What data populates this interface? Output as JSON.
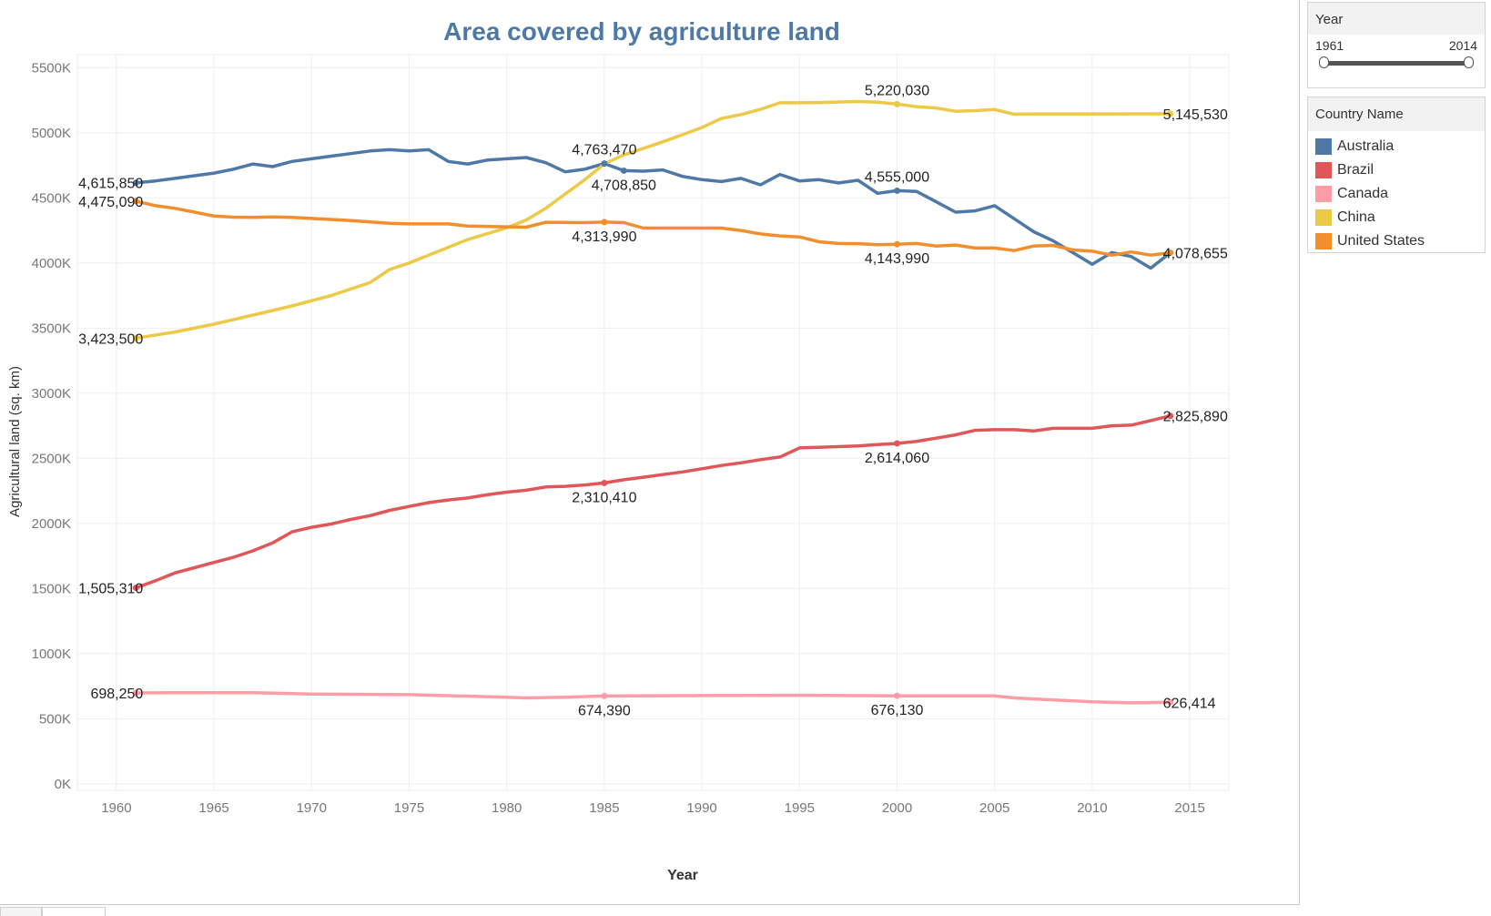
{
  "chart_data": {
    "type": "line",
    "title": "Area covered by agriculture land",
    "xlabel": "Year",
    "ylabel": "Agricultural land (sq. km)",
    "xlim": [
      1958,
      2017
    ],
    "ylim": [
      -50000,
      5600000
    ],
    "x_ticks": [
      1960,
      1965,
      1970,
      1975,
      1980,
      1985,
      1990,
      1995,
      2000,
      2005,
      2010,
      2015
    ],
    "y_ticks": [
      {
        "value": 0,
        "label": "0K"
      },
      {
        "value": 500000,
        "label": "500K"
      },
      {
        "value": 1000000,
        "label": "1000K"
      },
      {
        "value": 1500000,
        "label": "1500K"
      },
      {
        "value": 2000000,
        "label": "2000K"
      },
      {
        "value": 2500000,
        "label": "2500K"
      },
      {
        "value": 3000000,
        "label": "3000K"
      },
      {
        "value": 3500000,
        "label": "3500K"
      },
      {
        "value": 4000000,
        "label": "4000K"
      },
      {
        "value": 4500000,
        "label": "4500K"
      },
      {
        "value": 5000000,
        "label": "5000K"
      },
      {
        "value": 5500000,
        "label": "5500K"
      }
    ],
    "grid": true,
    "legend_position": "right",
    "series": [
      {
        "name": "Australia",
        "color": "#4e79a7",
        "points": [
          [
            1961,
            4615850
          ],
          [
            1962,
            4630000
          ],
          [
            1963,
            4650000
          ],
          [
            1964,
            4670000
          ],
          [
            1965,
            4690000
          ],
          [
            1966,
            4720000
          ],
          [
            1967,
            4760000
          ],
          [
            1968,
            4740000
          ],
          [
            1969,
            4780000
          ],
          [
            1970,
            4800000
          ],
          [
            1971,
            4820000
          ],
          [
            1972,
            4840000
          ],
          [
            1973,
            4860000
          ],
          [
            1974,
            4870000
          ],
          [
            1975,
            4860000
          ],
          [
            1976,
            4870000
          ],
          [
            1977,
            4780000
          ],
          [
            1978,
            4760000
          ],
          [
            1979,
            4790000
          ],
          [
            1980,
            4800000
          ],
          [
            1981,
            4810000
          ],
          [
            1982,
            4770000
          ],
          [
            1983,
            4700000
          ],
          [
            1984,
            4720000
          ],
          [
            1985,
            4763470
          ],
          [
            1986,
            4708850
          ],
          [
            1987,
            4705000
          ],
          [
            1988,
            4715000
          ],
          [
            1989,
            4665000
          ],
          [
            1990,
            4640000
          ],
          [
            1991,
            4625000
          ],
          [
            1992,
            4650000
          ],
          [
            1993,
            4600000
          ],
          [
            1994,
            4680000
          ],
          [
            1995,
            4630000
          ],
          [
            1996,
            4640000
          ],
          [
            1997,
            4615000
          ],
          [
            1998,
            4635000
          ],
          [
            1999,
            4535000
          ],
          [
            2000,
            4555000
          ],
          [
            2001,
            4550000
          ],
          [
            2002,
            4470000
          ],
          [
            2003,
            4390000
          ],
          [
            2004,
            4400000
          ],
          [
            2005,
            4440000
          ],
          [
            2006,
            4340000
          ],
          [
            2007,
            4240000
          ],
          [
            2008,
            4170000
          ],
          [
            2009,
            4080000
          ],
          [
            2010,
            3990000
          ],
          [
            2011,
            4080000
          ],
          [
            2012,
            4050000
          ],
          [
            2013,
            3960000
          ],
          [
            2014,
            4078655
          ]
        ]
      },
      {
        "name": "Brazil",
        "color": "#e15759",
        "points": [
          [
            1961,
            1505310
          ],
          [
            1962,
            1560000
          ],
          [
            1963,
            1620000
          ],
          [
            1964,
            1660000
          ],
          [
            1965,
            1700000
          ],
          [
            1966,
            1740000
          ],
          [
            1967,
            1790000
          ],
          [
            1968,
            1850000
          ],
          [
            1969,
            1935000
          ],
          [
            1970,
            1970000
          ],
          [
            1971,
            1995000
          ],
          [
            1972,
            2030000
          ],
          [
            1973,
            2060000
          ],
          [
            1974,
            2100000
          ],
          [
            1975,
            2130000
          ],
          [
            1976,
            2160000
          ],
          [
            1977,
            2180000
          ],
          [
            1978,
            2195000
          ],
          [
            1979,
            2220000
          ],
          [
            1980,
            2240000
          ],
          [
            1981,
            2255000
          ],
          [
            1982,
            2280000
          ],
          [
            1983,
            2285000
          ],
          [
            1984,
            2295000
          ],
          [
            1985,
            2310410
          ],
          [
            1986,
            2335000
          ],
          [
            1987,
            2355000
          ],
          [
            1988,
            2375000
          ],
          [
            1989,
            2395000
          ],
          [
            1990,
            2420000
          ],
          [
            1991,
            2445000
          ],
          [
            1992,
            2465000
          ],
          [
            1993,
            2490000
          ],
          [
            1994,
            2510000
          ],
          [
            1995,
            2580000
          ],
          [
            1996,
            2585000
          ],
          [
            1997,
            2590000
          ],
          [
            1998,
            2595000
          ],
          [
            1999,
            2605000
          ],
          [
            2000,
            2614060
          ],
          [
            2001,
            2630000
          ],
          [
            2002,
            2655000
          ],
          [
            2003,
            2680000
          ],
          [
            2004,
            2715000
          ],
          [
            2005,
            2720000
          ],
          [
            2006,
            2720000
          ],
          [
            2007,
            2710000
          ],
          [
            2008,
            2730000
          ],
          [
            2009,
            2730000
          ],
          [
            2010,
            2730000
          ],
          [
            2011,
            2750000
          ],
          [
            2012,
            2755000
          ],
          [
            2013,
            2790000
          ],
          [
            2014,
            2825890
          ]
        ]
      },
      {
        "name": "Canada",
        "color": "#ff9da7",
        "points": [
          [
            1961,
            698250
          ],
          [
            1963,
            700000
          ],
          [
            1965,
            700000
          ],
          [
            1967,
            700000
          ],
          [
            1970,
            690000
          ],
          [
            1975,
            685000
          ],
          [
            1980,
            665000
          ],
          [
            1981,
            660000
          ],
          [
            1983,
            665000
          ],
          [
            1985,
            674390
          ],
          [
            1990,
            678000
          ],
          [
            1995,
            680000
          ],
          [
            2000,
            676130
          ],
          [
            2005,
            675000
          ],
          [
            2006,
            660000
          ],
          [
            2010,
            630000
          ],
          [
            2012,
            622000
          ],
          [
            2014,
            626414
          ]
        ]
      },
      {
        "name": "China",
        "color": "#edc948",
        "points": [
          [
            1961,
            3423500
          ],
          [
            1963,
            3470000
          ],
          [
            1965,
            3530000
          ],
          [
            1967,
            3600000
          ],
          [
            1969,
            3670000
          ],
          [
            1971,
            3750000
          ],
          [
            1973,
            3850000
          ],
          [
            1974,
            3950000
          ],
          [
            1975,
            4000000
          ],
          [
            1976,
            4060000
          ],
          [
            1978,
            4180000
          ],
          [
            1980,
            4270000
          ],
          [
            1981,
            4330000
          ],
          [
            1982,
            4420000
          ],
          [
            1983,
            4530000
          ],
          [
            1984,
            4640000
          ],
          [
            1985,
            4760000
          ],
          [
            1986,
            4830000
          ],
          [
            1988,
            4930000
          ],
          [
            1990,
            5040000
          ],
          [
            1991,
            5110000
          ],
          [
            1992,
            5140000
          ],
          [
            1993,
            5180000
          ],
          [
            1994,
            5230000
          ],
          [
            1995,
            5230000
          ],
          [
            1996,
            5232000
          ],
          [
            1998,
            5240000
          ],
          [
            1999,
            5235000
          ],
          [
            2000,
            5220030
          ],
          [
            2001,
            5200000
          ],
          [
            2002,
            5190000
          ],
          [
            2003,
            5165000
          ],
          [
            2004,
            5170000
          ],
          [
            2005,
            5178000
          ],
          [
            2006,
            5143000
          ],
          [
            2007,
            5145000
          ],
          [
            2010,
            5145000
          ],
          [
            2014,
            5145530
          ]
        ]
      },
      {
        "name": "United States",
        "color": "#f28e2b",
        "points": [
          [
            1961,
            4475090
          ],
          [
            1962,
            4440000
          ],
          [
            1963,
            4420000
          ],
          [
            1964,
            4390000
          ],
          [
            1965,
            4360000
          ],
          [
            1966,
            4352000
          ],
          [
            1967,
            4350000
          ],
          [
            1968,
            4353000
          ],
          [
            1969,
            4350000
          ],
          [
            1970,
            4342000
          ],
          [
            1972,
            4326000
          ],
          [
            1974,
            4305000
          ],
          [
            1975,
            4300000
          ],
          [
            1977,
            4300000
          ],
          [
            1978,
            4283000
          ],
          [
            1980,
            4278000
          ],
          [
            1981,
            4275000
          ],
          [
            1982,
            4313000
          ],
          [
            1984,
            4310000
          ],
          [
            1985,
            4313990
          ],
          [
            1986,
            4310000
          ],
          [
            1987,
            4268000
          ],
          [
            1991,
            4268000
          ],
          [
            1992,
            4250000
          ],
          [
            1993,
            4223000
          ],
          [
            1994,
            4208000
          ],
          [
            1995,
            4200000
          ],
          [
            1996,
            4163000
          ],
          [
            1997,
            4150000
          ],
          [
            1998,
            4148000
          ],
          [
            1999,
            4140000
          ],
          [
            2000,
            4143990
          ],
          [
            2001,
            4150000
          ],
          [
            2002,
            4130000
          ],
          [
            2003,
            4138000
          ],
          [
            2004,
            4115000
          ],
          [
            2005,
            4115000
          ],
          [
            2006,
            4095000
          ],
          [
            2007,
            4130000
          ],
          [
            2008,
            4135000
          ],
          [
            2009,
            4100000
          ],
          [
            2010,
            4090000
          ],
          [
            2011,
            4060000
          ],
          [
            2012,
            4085000
          ],
          [
            2013,
            4060000
          ],
          [
            2014,
            4078655
          ]
        ]
      }
    ],
    "data_labels": [
      {
        "series": "Australia",
        "x": 1961,
        "y": 4615850,
        "text": "4,615,850",
        "anchor": "left"
      },
      {
        "series": "United States",
        "x": 1961,
        "y": 4475090,
        "text": "4,475,090",
        "anchor": "left"
      },
      {
        "series": "China",
        "x": 1961,
        "y": 3423500,
        "text": "3,423,500",
        "anchor": "left"
      },
      {
        "series": "Brazil",
        "x": 1961,
        "y": 1505310,
        "text": "1,505,310",
        "anchor": "left"
      },
      {
        "series": "Canada",
        "x": 1961,
        "y": 698250,
        "text": "698,250",
        "anchor": "left"
      },
      {
        "series": "Australia",
        "x": 1985,
        "y": 4763470,
        "text": "4,763,470",
        "anchor": "above"
      },
      {
        "series": "Australia",
        "x": 1986,
        "y": 4708850,
        "text": "4,708,850",
        "anchor": "below"
      },
      {
        "series": "United States",
        "x": 1985,
        "y": 4313990,
        "text": "4,313,990",
        "anchor": "below"
      },
      {
        "series": "Brazil",
        "x": 1985,
        "y": 2310410,
        "text": "2,310,410",
        "anchor": "below"
      },
      {
        "series": "Canada",
        "x": 1985,
        "y": 674390,
        "text": "674,390",
        "anchor": "below"
      },
      {
        "series": "China",
        "x": 2000,
        "y": 5220030,
        "text": "5,220,030",
        "anchor": "above"
      },
      {
        "series": "Australia",
        "x": 2000,
        "y": 4555000,
        "text": "4,555,000",
        "anchor": "above"
      },
      {
        "series": "United States",
        "x": 2000,
        "y": 4143990,
        "text": "4,143,990",
        "anchor": "below"
      },
      {
        "series": "Brazil",
        "x": 2000,
        "y": 2614060,
        "text": "2,614,060",
        "anchor": "below"
      },
      {
        "series": "Canada",
        "x": 2000,
        "y": 676130,
        "text": "676,130",
        "anchor": "below"
      },
      {
        "series": "China",
        "x": 2014,
        "y": 5145530,
        "text": "5,145,530",
        "anchor": "right"
      },
      {
        "series": "United States",
        "x": 2014,
        "y": 4078655,
        "text": "4,078,655",
        "anchor": "right"
      },
      {
        "series": "Brazil",
        "x": 2014,
        "y": 2825890,
        "text": "2,825,890",
        "anchor": "right"
      },
      {
        "series": "Canada",
        "x": 2014,
        "y": 626414,
        "text": "626,414",
        "anchor": "right"
      }
    ]
  },
  "filter": {
    "title": "Year",
    "min_label": "1961",
    "max_label": "2014",
    "range": [
      1961,
      2014
    ]
  },
  "legend": {
    "title": "Country Name",
    "items": [
      {
        "label": "Australia",
        "color": "#4e79a7"
      },
      {
        "label": "Brazil",
        "color": "#e15759"
      },
      {
        "label": "Canada",
        "color": "#ff9da7"
      },
      {
        "label": "China",
        "color": "#edc948"
      },
      {
        "label": "United States",
        "color": "#f28e2b"
      }
    ]
  }
}
